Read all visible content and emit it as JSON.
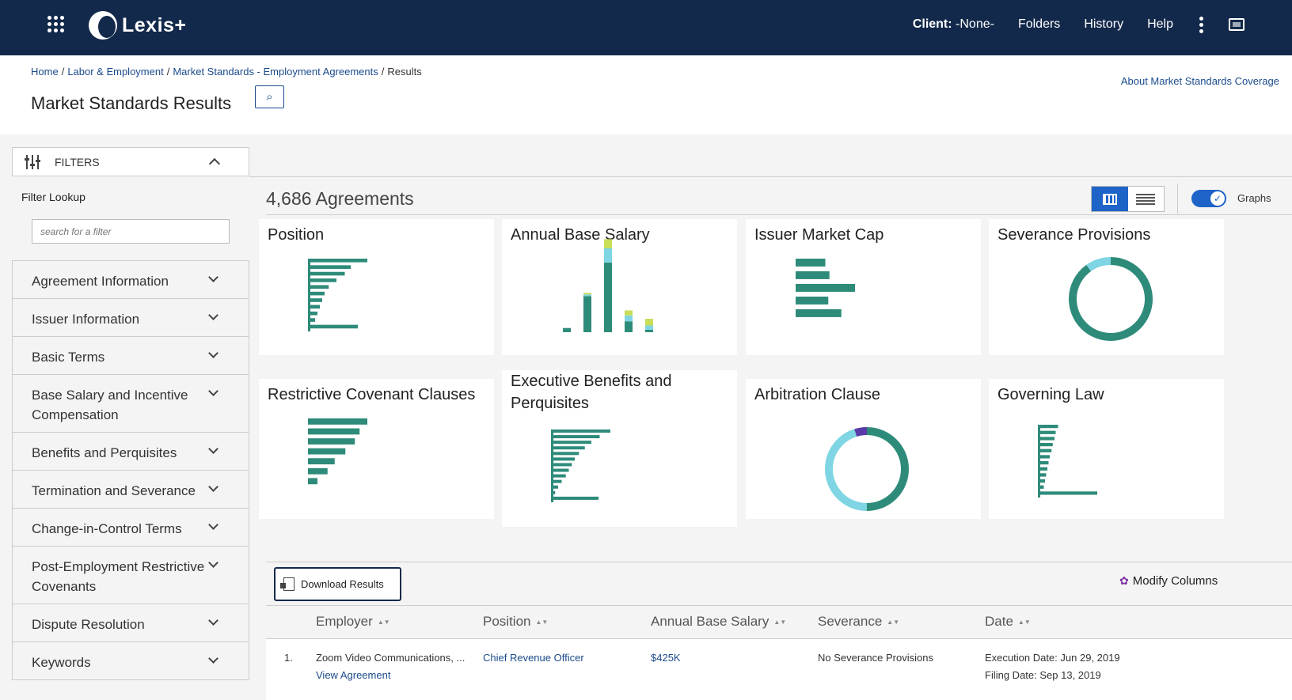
{
  "header": {
    "logo_text": "Lexis+",
    "client_label": "Client:",
    "client_value": "-None-",
    "nav": [
      "Folders",
      "History",
      "Help"
    ]
  },
  "breadcrumb": {
    "items": [
      "Home",
      "Labor & Employment",
      "Market Standards - Employment Agreements"
    ],
    "current": "Results"
  },
  "page_title": "Market Standards Results",
  "about_link": "About Market Standards Coverage",
  "filters": {
    "header": "FILTERS",
    "lookup_label": "Filter Lookup",
    "lookup_placeholder": "search for a filter",
    "items": [
      "Agreement Information",
      "Issuer Information",
      "Basic Terms",
      "Base Salary and Incentive Compensation",
      "Benefits and Perquisites",
      "Termination and Severance",
      "Change-in-Control Terms",
      "Post-Employment Restrictive Covenants",
      "Dispute Resolution",
      "Keywords"
    ]
  },
  "results": {
    "count": "4,686 Agreements",
    "graphs_label": "Graphs"
  },
  "colors": {
    "teal": "#2e8b7a",
    "light_blue": "#7fd5e3",
    "yellow_green": "#c8de5a",
    "purple": "#5a3aa8",
    "navy": "#13294b",
    "accent_blue": "#1e64c8"
  },
  "cards": [
    {
      "title": "Position",
      "chart": "hbar",
      "bars": [
        1.0,
        0.72,
        0.62,
        0.48,
        0.35,
        0.28,
        0.24,
        0.2,
        0.16,
        0.12,
        0.84
      ]
    },
    {
      "title": "Annual Base Salary",
      "chart": "stacked-bar",
      "stacks": [
        [
          0.05,
          0,
          0
        ],
        [
          0.43,
          0.02,
          0.02
        ],
        [
          0.83,
          0.17,
          0.11
        ],
        [
          0.13,
          0.07,
          0.06
        ],
        [
          0.03,
          0.05,
          0.08
        ]
      ]
    },
    {
      "title": "Issuer Market Cap",
      "chart": "hbar",
      "bars": [
        0.5,
        0.57,
        1.0,
        0.55,
        0.77
      ]
    },
    {
      "title": "Severance Provisions",
      "chart": "donut",
      "segments": [
        0.9,
        0.1
      ]
    },
    {
      "title": "Restrictive Covenant Clauses",
      "chart": "hbar",
      "bars": [
        1.0,
        0.87,
        0.79,
        0.63,
        0.45,
        0.33,
        0.16
      ]
    },
    {
      "title": "Executive Benefits and Perquisites",
      "chart": "hbar",
      "bars": [
        1.0,
        0.82,
        0.68,
        0.57,
        0.47,
        0.4,
        0.35,
        0.3,
        0.25,
        0.18,
        0.12,
        0.07,
        0.8
      ]
    },
    {
      "title": "Arbitration Clause",
      "chart": "donut",
      "segments": [
        0.5,
        0.45,
        0.05
      ]
    },
    {
      "title": "Governing Law",
      "chart": "hbar",
      "bars": [
        0.34,
        0.3,
        0.28,
        0.25,
        0.23,
        0.2,
        0.18,
        0.16,
        0.14,
        0.12,
        0.1,
        1.0
      ]
    }
  ],
  "toolbar": {
    "download_label": "Download Results",
    "modify_label": "Modify Columns"
  },
  "table": {
    "columns": [
      "Employer",
      "Position",
      "Annual Base Salary",
      "Severance",
      "Date"
    ],
    "rows": [
      {
        "index": "1.",
        "employer": "Zoom Video Communications, ...",
        "view_link": "View Agreement",
        "position": "Chief Revenue Officer",
        "salary": "$425K",
        "severance": "No Severance Provisions",
        "execution_date": "Execution Date: Jun 29, 2019",
        "filing_date": "Filing Date: Sep 13, 2019"
      }
    ]
  }
}
